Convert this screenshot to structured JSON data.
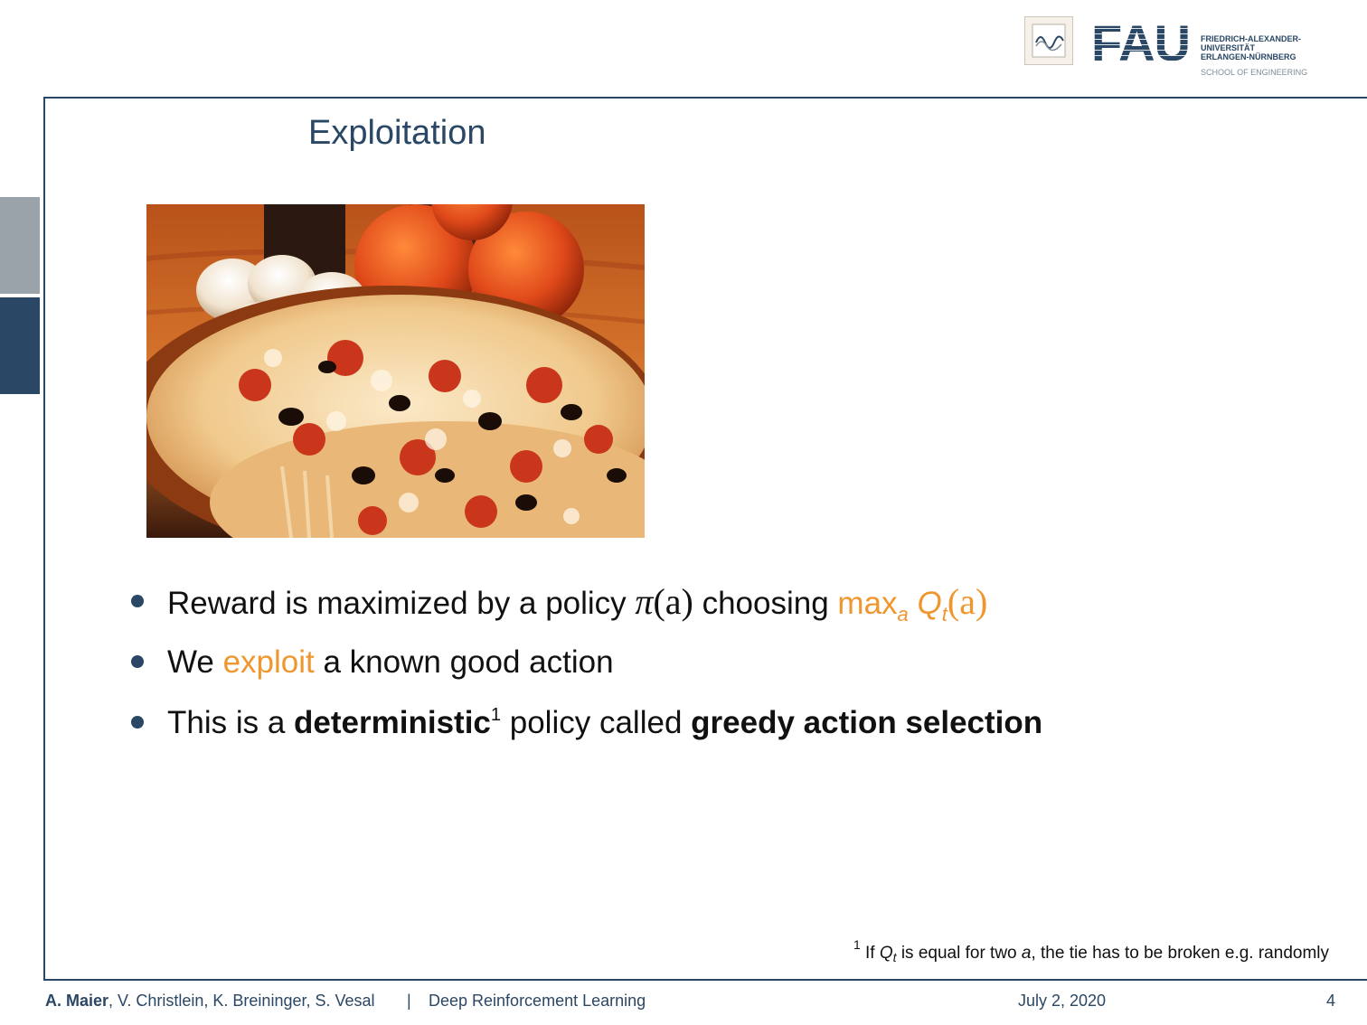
{
  "slide": {
    "title": "Exploitation",
    "bullets": {
      "b1": {
        "text_before": "Reward is maximized by a policy ",
        "pi_symbol": "π",
        "pi_arg": "(a)",
        "text_mid": " choosing ",
        "max_label": "max",
        "max_sub": "a",
        "q_label": "Q",
        "q_sub": "t",
        "q_arg": "(a)"
      },
      "b2": {
        "text_before": "We ",
        "highlight": "exploit",
        "text_after": " a known good action"
      },
      "b3": {
        "text_before": "This is a ",
        "bold1": "deterministic",
        "footnote_mark": "1",
        "text_mid": " policy called ",
        "bold2": "greedy action selection"
      }
    },
    "footnote": {
      "mark": "1",
      "text_before": " If ",
      "q_label": "Q",
      "q_sub": "t",
      "text_mid": " is equal for two ",
      "var": "a",
      "text_after": ", the tie has to be broken e.g. randomly"
    }
  },
  "header": {
    "logo_fau": "FAU",
    "logo_name_line1": "FRIEDRICH-ALEXANDER-",
    "logo_name_line2": "UNIVERSITÄT",
    "logo_name_line3": "ERLANGEN-NÜRNBERG",
    "logo_school": "SCHOOL OF ENGINEERING"
  },
  "footer": {
    "author_bold": "A. Maier",
    "authors_rest": ", V. Christlein, K. Breininger, S. Vesal",
    "separator": "|",
    "course": "Deep Reinforcement Learning",
    "date": "July 2, 2020",
    "page": "4"
  },
  "colors": {
    "fau_blue": "#2a4765",
    "highlight_orange": "#f0962f",
    "tab_gray": "#9aa3a9"
  }
}
